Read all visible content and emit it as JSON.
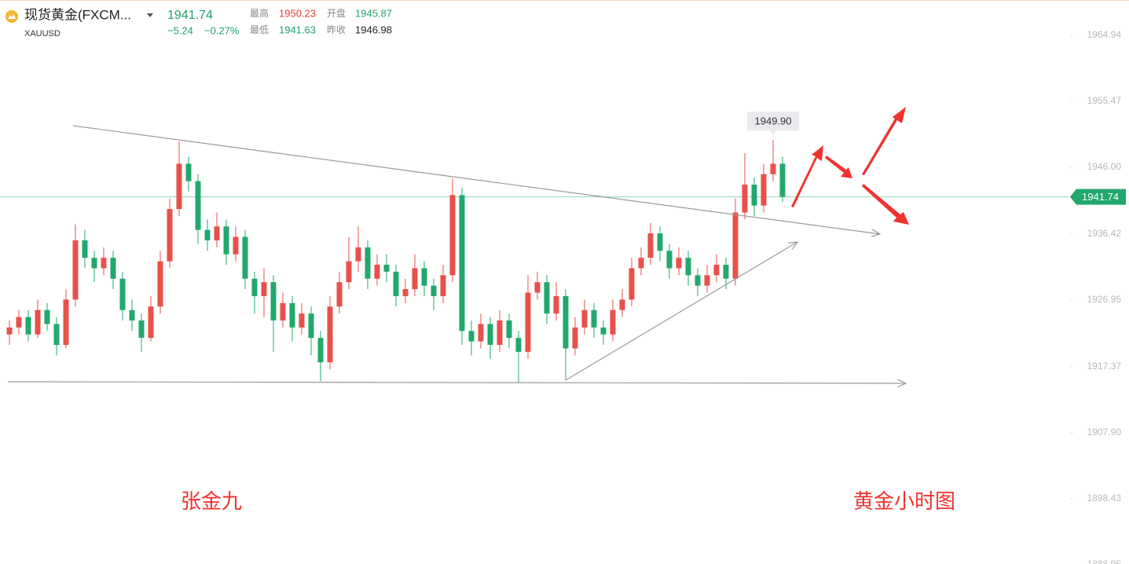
{
  "chart_data": {
    "type": "candlestick",
    "title": "现货黄金(FXCM...",
    "symbol": "XAUUSD",
    "last_price": 1941.74,
    "change": {
      "value": -5.24,
      "label": "−5.24"
    },
    "change_pct": {
      "value": -0.27,
      "label": "−0.27%"
    },
    "stats": [
      {
        "label": "最高",
        "value": 1950.23,
        "color": "#e0403a"
      },
      {
        "label": "开盘",
        "value": 1945.87,
        "color": "#1fa06a"
      },
      {
        "label": "最低",
        "value": 1941.63,
        "color": "#1fa06a"
      },
      {
        "label": "昨收",
        "value": 1946.98,
        "color": "#222222"
      }
    ],
    "up_color": "#e8504a",
    "down_color": "#22a86c",
    "ylim": [
      1889.05,
      1970.0
    ],
    "yticks": [
      1964.94,
      1955.47,
      {
        "value": 1946.0,
        "label": "1946.00"
      },
      1936.42,
      1926.95,
      1917.37,
      {
        "value": 1907.9,
        "label": "1907.90"
      },
      1898.43,
      1888.95
    ],
    "high_marker": {
      "index": 81,
      "value": 1949.9,
      "label": "1949.90"
    },
    "annotations": [
      "张金九",
      "黄金小时图"
    ],
    "open": [
      1922.0,
      1923.0,
      1924.5,
      1922.0,
      1925.5,
      1923.5,
      1920.5,
      1927.0,
      1935.5,
      1933.0,
      1931.5,
      1933.0,
      1930.0,
      1925.5,
      1924.0,
      1921.5,
      1926.0,
      1932.5,
      1940.0,
      1946.5,
      1944.0,
      1937.0,
      1935.5,
      1937.5,
      1933.5,
      1936.0,
      1930.0,
      1927.5,
      1929.5,
      1924.0,
      1926.5,
      1923.0,
      1925.0,
      1921.5,
      1918.0,
      1926.0,
      1929.5,
      1932.5,
      1934.5,
      1930.0,
      1932.0,
      1931.0,
      1927.5,
      1928.5,
      1931.5,
      1929.0,
      1927.5,
      1930.5,
      1942.0,
      1922.5,
      1921.0,
      1923.5,
      1920.5,
      1924.0,
      1921.5,
      1919.5,
      1928.0,
      1929.5,
      1925.0,
      1927.5,
      1920.0,
      1923.0,
      1925.5,
      1923.0,
      1922.0,
      1925.5,
      1927.0,
      1931.5,
      1933.0,
      1936.5,
      1934.0,
      1931.5,
      1933.0,
      1930.5,
      1929.0,
      1930.5,
      1932.0,
      1930.0,
      1939.5,
      1943.5,
      1940.5,
      1945.0,
      1946.5
    ],
    "high": [
      1924.0,
      1925.5,
      1925.5,
      1927.0,
      1926.5,
      1924.5,
      1928.5,
      1937.8,
      1937.0,
      1934.0,
      1934.5,
      1934.0,
      1931.0,
      1927.0,
      1925.0,
      1927.5,
      1934.0,
      1941.5,
      1949.7,
      1947.5,
      1945.0,
      1938.5,
      1939.5,
      1938.5,
      1937.5,
      1937.0,
      1931.0,
      1931.5,
      1930.5,
      1928.0,
      1927.5,
      1926.5,
      1926.0,
      1922.5,
      1927.5,
      1931.0,
      1936.0,
      1937.5,
      1935.5,
      1933.5,
      1933.5,
      1932.0,
      1930.0,
      1933.5,
      1932.5,
      1930.0,
      1932.0,
      1944.4,
      1943.0,
      1924.0,
      1925.0,
      1924.5,
      1925.5,
      1925.0,
      1922.5,
      1930.5,
      1931.0,
      1930.5,
      1929.5,
      1928.5,
      1924.5,
      1927.0,
      1926.5,
      1924.0,
      1927.0,
      1928.5,
      1933.0,
      1934.5,
      1938.0,
      1937.5,
      1935.0,
      1934.5,
      1934.0,
      1931.5,
      1932.0,
      1933.5,
      1933.0,
      1941.5,
      1948.0,
      1944.5,
      1946.5,
      1949.9,
      1947.5
    ],
    "low": [
      1920.5,
      1922.0,
      1921.0,
      1921.5,
      1922.5,
      1919.0,
      1920.0,
      1926.0,
      1931.5,
      1929.5,
      1930.5,
      1928.5,
      1924.0,
      1922.5,
      1919.5,
      1921.0,
      1925.0,
      1931.5,
      1939.0,
      1942.5,
      1935.0,
      1934.0,
      1934.5,
      1932.0,
      1932.5,
      1928.5,
      1925.0,
      1924.5,
      1919.5,
      1923.0,
      1921.0,
      1922.0,
      1919.0,
      1915.3,
      1917.0,
      1925.0,
      1928.5,
      1931.0,
      1928.5,
      1929.0,
      1929.5,
      1926.0,
      1926.5,
      1927.5,
      1927.5,
      1925.5,
      1926.5,
      1929.5,
      1920.5,
      1919.0,
      1920.0,
      1918.5,
      1919.5,
      1920.0,
      1915.0,
      1918.5,
      1927.0,
      1923.5,
      1924.0,
      1915.4,
      1919.0,
      1922.0,
      1921.5,
      1920.5,
      1921.0,
      1924.5,
      1926.0,
      1930.5,
      1932.0,
      1932.5,
      1930.0,
      1930.5,
      1929.0,
      1927.5,
      1928.0,
      1929.5,
      1928.5,
      1929.0,
      1938.5,
      1939.0,
      1939.5,
      1944.0,
      1941.0
    ],
    "close": [
      1923.0,
      1924.5,
      1922.0,
      1925.5,
      1923.5,
      1920.5,
      1927.0,
      1935.5,
      1933.0,
      1931.5,
      1933.0,
      1930.0,
      1925.5,
      1924.0,
      1921.5,
      1926.0,
      1932.5,
      1940.0,
      1946.5,
      1944.0,
      1937.0,
      1935.5,
      1937.5,
      1933.5,
      1936.0,
      1930.0,
      1927.5,
      1929.5,
      1924.0,
      1926.5,
      1923.0,
      1925.0,
      1921.5,
      1918.0,
      1926.0,
      1929.5,
      1932.5,
      1934.5,
      1930.0,
      1932.0,
      1931.0,
      1927.5,
      1928.5,
      1931.5,
      1929.0,
      1927.5,
      1930.5,
      1942.0,
      1922.5,
      1921.0,
      1923.5,
      1920.5,
      1924.0,
      1921.5,
      1919.5,
      1928.0,
      1929.5,
      1925.0,
      1927.5,
      1920.0,
      1923.0,
      1925.5,
      1923.0,
      1922.0,
      1925.5,
      1927.0,
      1931.5,
      1933.0,
      1936.5,
      1934.0,
      1931.5,
      1933.0,
      1930.5,
      1929.0,
      1930.5,
      1932.0,
      1930.0,
      1939.5,
      1943.5,
      1940.5,
      1945.0,
      1946.5,
      1941.74
    ]
  }
}
